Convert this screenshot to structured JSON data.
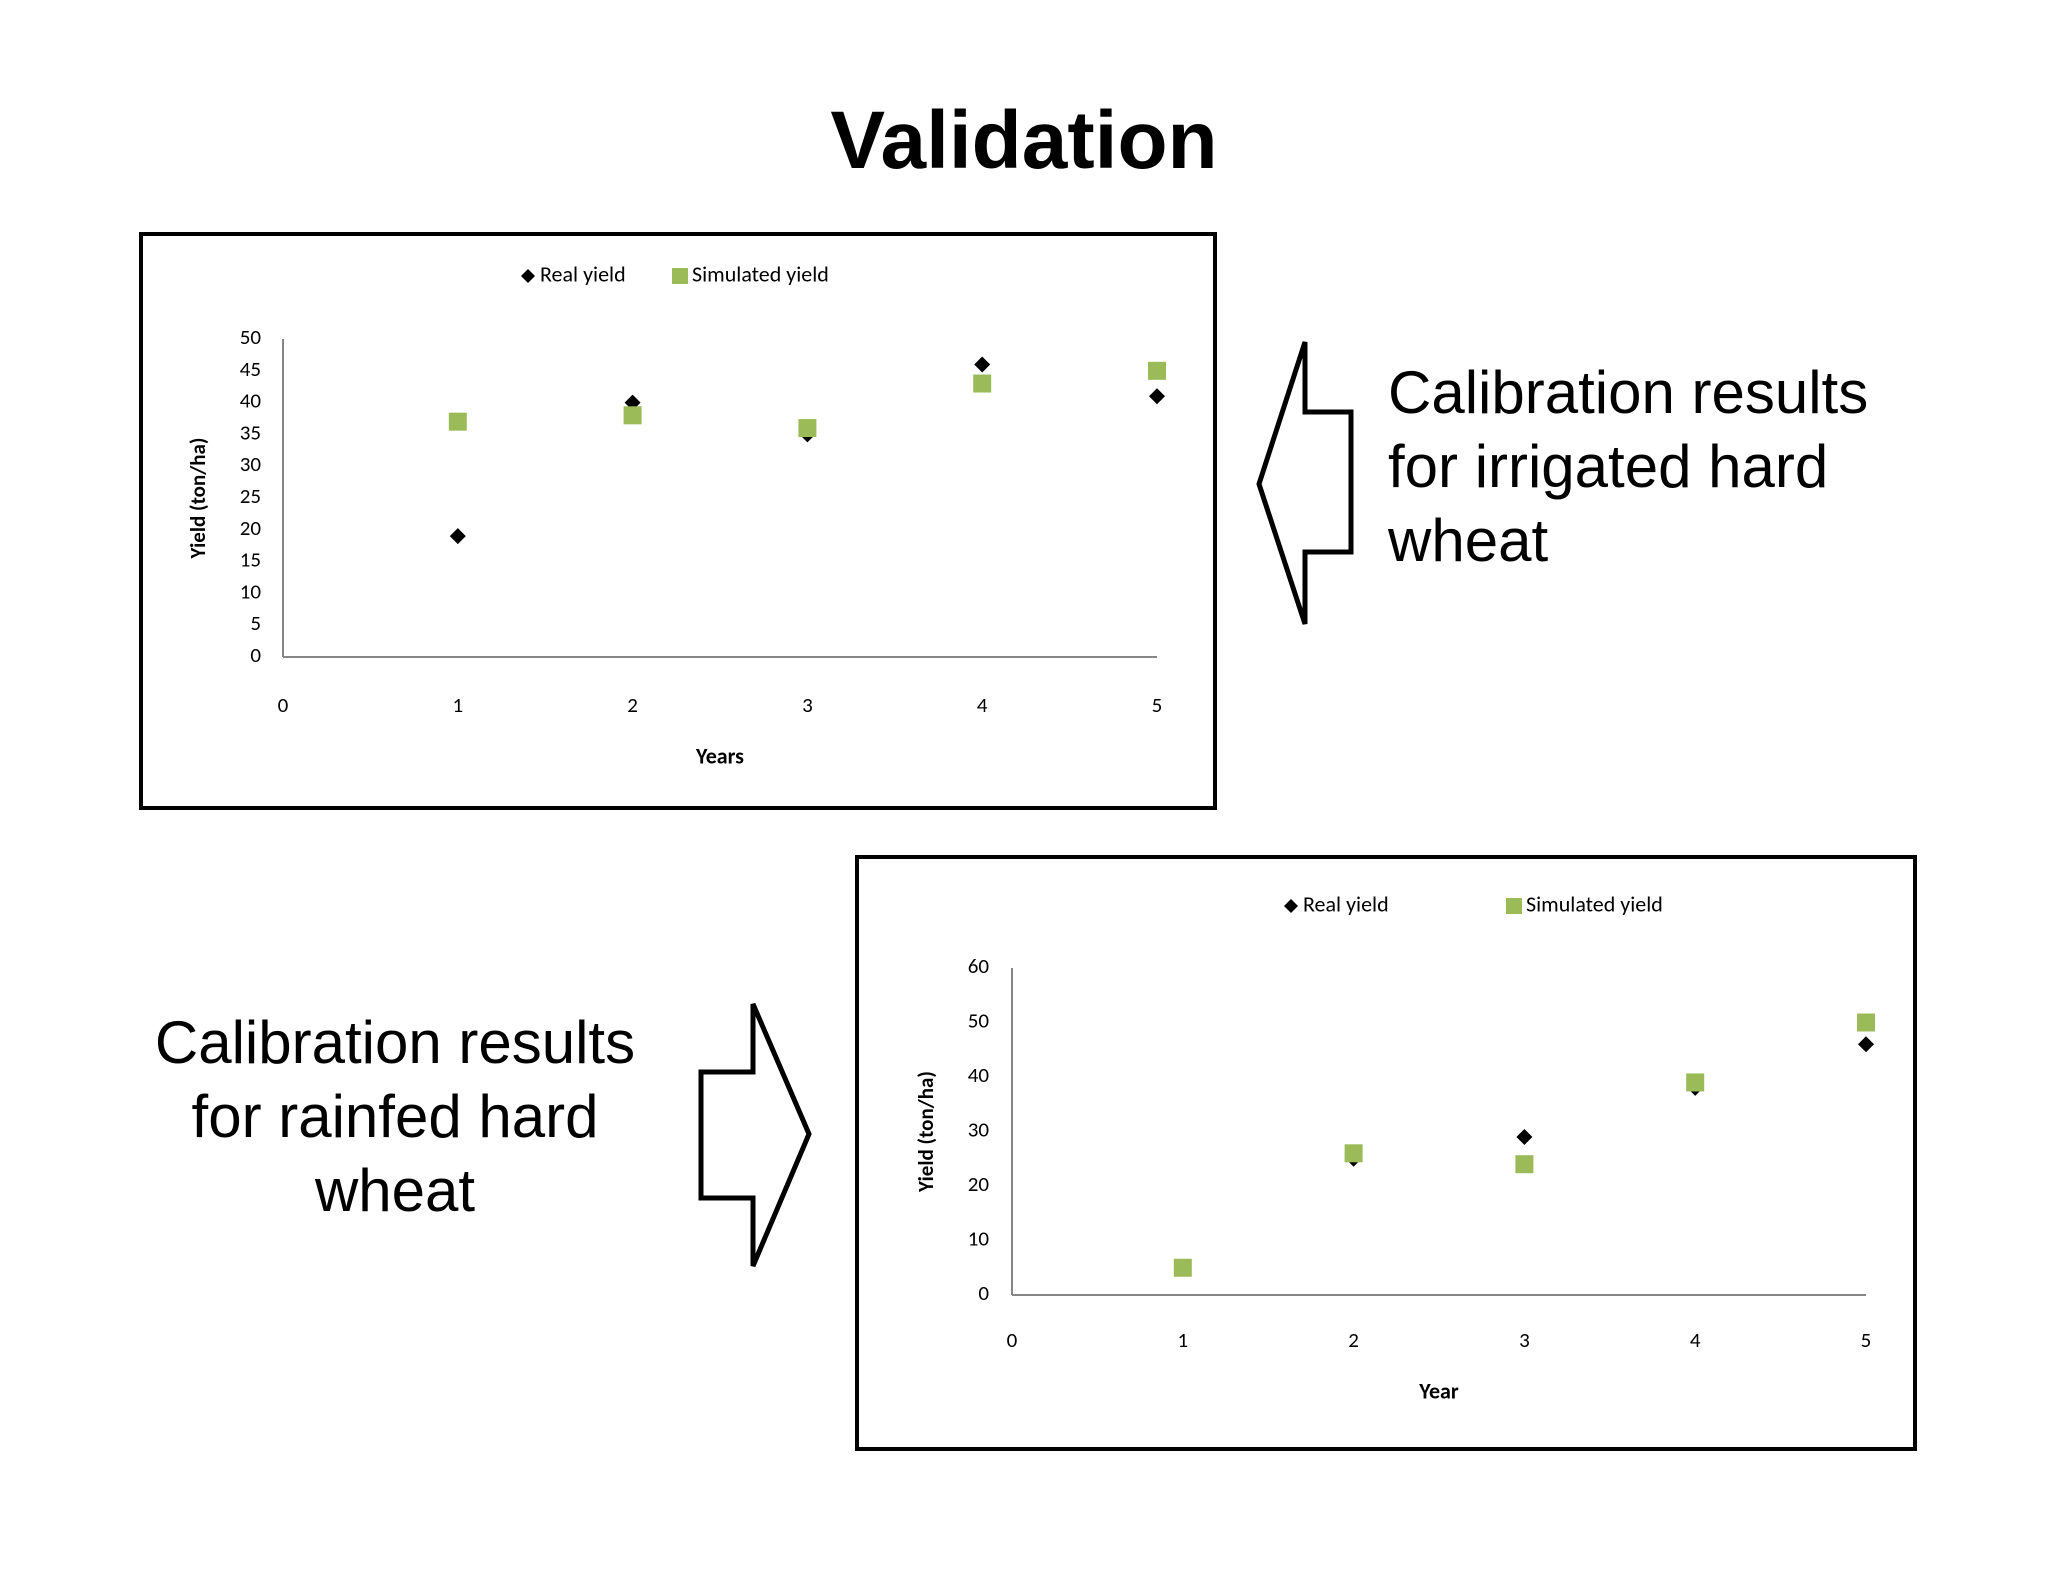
{
  "title": "Validation",
  "captions": {
    "top": [
      "Calibration results",
      "for irrigated hard",
      "wheat"
    ],
    "bottom": [
      "Calibration results",
      "for rainfed hard",
      "wheat"
    ]
  },
  "arrows": {
    "top": "left-arrow-icon",
    "bottom": "right-arrow-icon"
  },
  "colors": {
    "real": "#000000",
    "simulated": "#9bbb59",
    "axis": "#868686"
  },
  "chart_data": [
    {
      "id": "chart1",
      "type": "scatter",
      "xlabel": "Years",
      "ylabel": "Yield (ton/ha)",
      "xlim": [
        0,
        5
      ],
      "ylim": [
        0,
        50
      ],
      "xticks": [
        0,
        1,
        2,
        3,
        4,
        5
      ],
      "yticks": [
        0,
        5,
        10,
        15,
        20,
        25,
        30,
        35,
        40,
        45,
        50
      ],
      "legend": "top",
      "grid": false,
      "series": [
        {
          "name": "Real yield",
          "marker": "diamond",
          "x": [
            1,
            2,
            3,
            4,
            5
          ],
          "y": [
            19,
            40,
            35,
            46,
            41
          ]
        },
        {
          "name": "Simulated yield",
          "marker": "square",
          "x": [
            1,
            2,
            3,
            4,
            5
          ],
          "y": [
            37,
            38,
            36,
            43,
            45
          ]
        }
      ]
    },
    {
      "id": "chart2",
      "type": "scatter",
      "xlabel": "Year",
      "ylabel": "Yield (ton/ha)",
      "xlim": [
        0,
        5
      ],
      "ylim": [
        0,
        60
      ],
      "xticks": [
        0,
        1,
        2,
        3,
        4,
        5
      ],
      "yticks": [
        0,
        10,
        20,
        30,
        40,
        50,
        60
      ],
      "legend": "top",
      "grid": false,
      "series": [
        {
          "name": "Real yield",
          "marker": "diamond",
          "x": [
            1,
            2,
            3,
            4,
            5
          ],
          "y": [
            5,
            25,
            29,
            38,
            46
          ]
        },
        {
          "name": "Simulated yield",
          "marker": "square",
          "x": [
            1,
            2,
            3,
            4,
            5
          ],
          "y": [
            5,
            26,
            24,
            39,
            50
          ]
        }
      ]
    }
  ]
}
